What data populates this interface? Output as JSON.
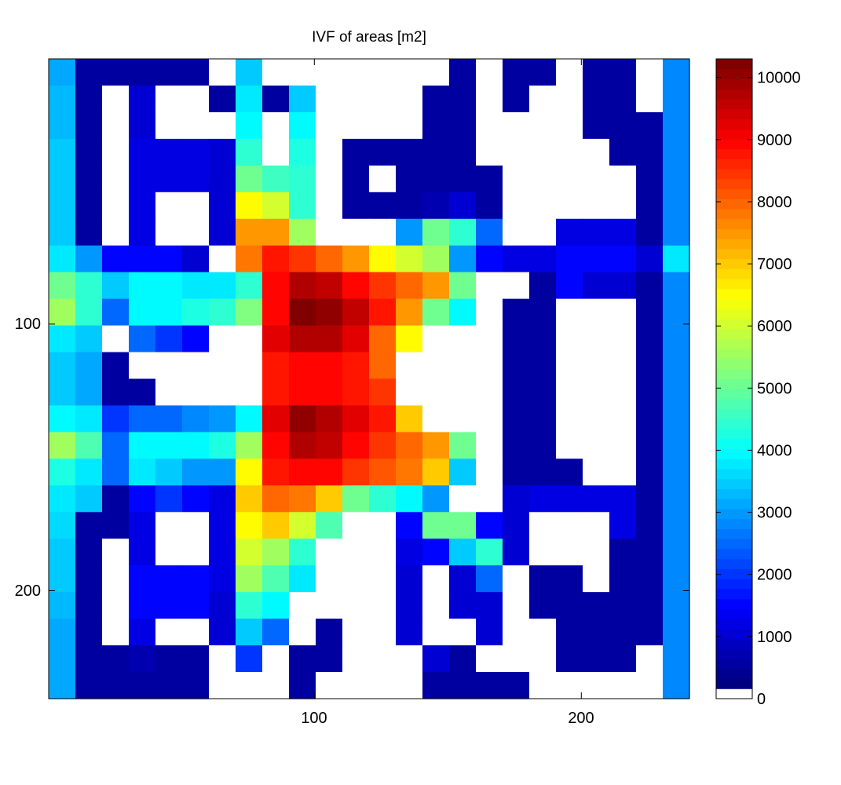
{
  "chart_data": {
    "type": "heatmap",
    "title": "IVF of areas [m2]",
    "xlabel": "",
    "ylabel": "",
    "xlim": [
      0.5,
      240.5
    ],
    "ylim": [
      0.5,
      240.5
    ],
    "y_direction": "reverse",
    "xticks": [
      100,
      200
    ],
    "yticks": [
      100,
      200
    ],
    "xtick_labels": [
      "100",
      "200"
    ],
    "ytick_labels": [
      "100",
      "200"
    ],
    "cell_size": 10,
    "colormap": "jet",
    "zero_color": "#ffffff",
    "clim": [
      0,
      10300
    ],
    "colorbar": {
      "placement": "right",
      "ticks": [
        0,
        1000,
        2000,
        3000,
        4000,
        5000,
        6000,
        7000,
        8000,
        9000,
        10000
      ],
      "tick_labels": [
        "0",
        "1000",
        "2000",
        "3000",
        "4000",
        "5000",
        "6000",
        "7000",
        "8000",
        "9000",
        "10000"
      ]
    },
    "grid": false,
    "values": [
      [
        3200,
        500,
        500,
        500,
        500,
        500,
        0,
        3500,
        0,
        0,
        0,
        0,
        0,
        0,
        0,
        500,
        0,
        500,
        500,
        0,
        500,
        500,
        0,
        2800
      ],
      [
        3300,
        500,
        0,
        1000,
        0,
        0,
        500,
        3800,
        500,
        3500,
        0,
        0,
        0,
        0,
        500,
        500,
        0,
        500,
        0,
        0,
        500,
        500,
        0,
        2800
      ],
      [
        3300,
        500,
        0,
        1000,
        0,
        0,
        0,
        4000,
        0,
        4000,
        0,
        0,
        0,
        0,
        500,
        500,
        0,
        0,
        0,
        0,
        500,
        500,
        500,
        2800
      ],
      [
        3400,
        500,
        0,
        1200,
        1200,
        1200,
        1000,
        4500,
        0,
        4200,
        0,
        500,
        500,
        500,
        500,
        500,
        0,
        0,
        0,
        0,
        0,
        500,
        500,
        2800
      ],
      [
        3400,
        500,
        0,
        1200,
        1200,
        1200,
        1000,
        5000,
        4600,
        4400,
        0,
        500,
        0,
        500,
        500,
        500,
        500,
        0,
        0,
        0,
        0,
        0,
        500,
        2800
      ],
      [
        3500,
        500,
        0,
        1200,
        0,
        0,
        1000,
        6500,
        6000,
        4500,
        0,
        500,
        500,
        500,
        800,
        1000,
        500,
        0,
        0,
        0,
        0,
        0,
        500,
        2800
      ],
      [
        3500,
        500,
        0,
        1200,
        0,
        0,
        1000,
        7500,
        7500,
        5500,
        0,
        0,
        0,
        3000,
        5000,
        4500,
        2500,
        0,
        0,
        1200,
        1200,
        1200,
        500,
        2800
      ],
      [
        3800,
        3000,
        1500,
        1500,
        1500,
        1000,
        0,
        7800,
        8800,
        8500,
        8000,
        7500,
        6500,
        6000,
        5500,
        3000,
        1500,
        1200,
        1200,
        1500,
        1500,
        1500,
        1000,
        3800
      ],
      [
        5000,
        4500,
        3500,
        4000,
        4000,
        3800,
        3800,
        4500,
        9000,
        9800,
        9500,
        9000,
        8500,
        8000,
        7500,
        5000,
        0,
        0,
        500,
        1500,
        1000,
        1000,
        500,
        2800
      ],
      [
        5500,
        4500,
        2500,
        4000,
        4000,
        4200,
        4500,
        5200,
        9000,
        10200,
        10000,
        9500,
        8800,
        7500,
        5000,
        4000,
        0,
        500,
        500,
        0,
        0,
        0,
        500,
        2800
      ],
      [
        3800,
        3500,
        0,
        2500,
        2000,
        1500,
        0,
        0,
        9200,
        9800,
        9800,
        9300,
        8000,
        6500,
        0,
        0,
        0,
        500,
        500,
        0,
        0,
        0,
        500,
        2800
      ],
      [
        3500,
        3200,
        500,
        0,
        0,
        0,
        0,
        0,
        8800,
        9000,
        9000,
        8800,
        8000,
        0,
        0,
        0,
        0,
        500,
        500,
        0,
        0,
        0,
        500,
        2800
      ],
      [
        3500,
        3200,
        500,
        500,
        0,
        0,
        0,
        0,
        8800,
        9000,
        9000,
        8800,
        8500,
        0,
        0,
        0,
        0,
        500,
        500,
        0,
        0,
        0,
        500,
        2800
      ],
      [
        4000,
        3800,
        2000,
        2500,
        2500,
        2800,
        3000,
        4000,
        9200,
        10000,
        9800,
        9300,
        8800,
        7000,
        0,
        0,
        0,
        500,
        500,
        0,
        0,
        0,
        500,
        2800
      ],
      [
        5500,
        4800,
        2500,
        4000,
        4000,
        4000,
        4200,
        5500,
        9000,
        9800,
        9500,
        9000,
        8500,
        8000,
        7500,
        5000,
        0,
        500,
        500,
        0,
        0,
        0,
        500,
        2800
      ],
      [
        4200,
        3800,
        2500,
        3800,
        3500,
        3000,
        3000,
        6500,
        8800,
        9000,
        9000,
        8500,
        8200,
        7800,
        7000,
        3500,
        0,
        500,
        500,
        500,
        0,
        0,
        500,
        2800
      ],
      [
        3800,
        3500,
        500,
        1500,
        2000,
        1500,
        1200,
        7000,
        8000,
        7800,
        7000,
        5000,
        4500,
        4000,
        3000,
        0,
        0,
        1000,
        1200,
        1200,
        1200,
        1200,
        500,
        2800
      ],
      [
        3600,
        500,
        500,
        1200,
        0,
        0,
        1200,
        6500,
        7000,
        6000,
        4800,
        0,
        0,
        1500,
        5000,
        5000,
        1500,
        1000,
        0,
        0,
        0,
        1200,
        500,
        2800
      ],
      [
        3500,
        500,
        0,
        1200,
        0,
        0,
        1200,
        6000,
        5500,
        4500,
        0,
        0,
        0,
        1200,
        1500,
        3500,
        4500,
        1000,
        0,
        0,
        0,
        500,
        500,
        2800
      ],
      [
        3400,
        500,
        0,
        1500,
        1500,
        1500,
        1200,
        5500,
        4800,
        3800,
        0,
        0,
        0,
        1000,
        0,
        1000,
        2500,
        0,
        500,
        500,
        0,
        500,
        500,
        2800
      ],
      [
        3300,
        500,
        0,
        1500,
        1500,
        1500,
        1000,
        4500,
        4000,
        0,
        0,
        0,
        0,
        1000,
        0,
        1000,
        1000,
        0,
        500,
        500,
        500,
        500,
        500,
        2800
      ],
      [
        3200,
        500,
        0,
        1200,
        0,
        0,
        1000,
        3500,
        2500,
        0,
        500,
        0,
        0,
        1000,
        0,
        0,
        1000,
        0,
        0,
        500,
        500,
        500,
        500,
        2800
      ],
      [
        3200,
        500,
        500,
        800,
        500,
        500,
        0,
        2000,
        0,
        500,
        500,
        0,
        0,
        0,
        1000,
        500,
        0,
        0,
        0,
        500,
        500,
        500,
        0,
        2800
      ],
      [
        3200,
        500,
        500,
        500,
        500,
        500,
        0,
        0,
        0,
        500,
        0,
        0,
        0,
        0,
        500,
        500,
        500,
        500,
        0,
        0,
        0,
        0,
        0,
        2800
      ]
    ]
  }
}
